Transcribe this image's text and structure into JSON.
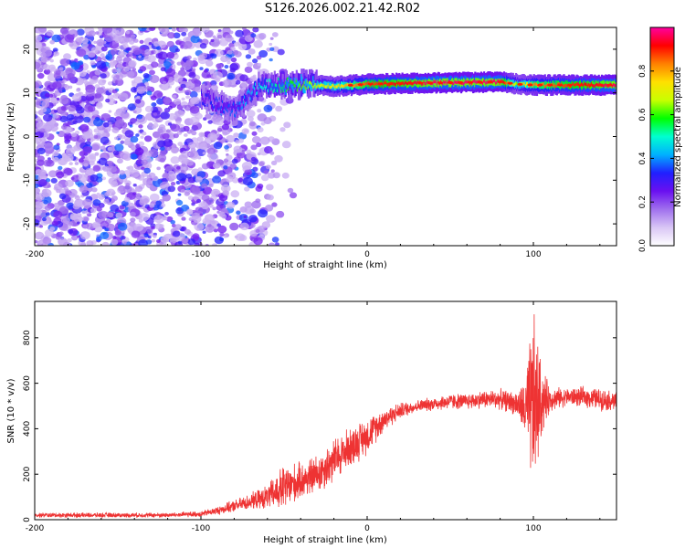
{
  "title": "S126.2026.002.21.42.R02",
  "colors": {
    "snr_line": "#ee3333",
    "colormap": [
      "#ffffff",
      "#d9c6f5",
      "#a070ee",
      "#6a10f0",
      "#2020ff",
      "#00b0ff",
      "#00ffd0",
      "#00ff00",
      "#c8ff00",
      "#ffe000",
      "#ff8000",
      "#ff0000",
      "#ff00a0"
    ]
  },
  "chart_data": [
    {
      "type": "heatmap",
      "xlabel": "Height of straight line (km)",
      "ylabel": "Frequency (Hz)",
      "xlim": [
        -200,
        150
      ],
      "ylim": [
        -25,
        25
      ],
      "xticks": [
        -200,
        -100,
        0,
        100
      ],
      "yticks": [
        -20,
        -10,
        0,
        10,
        20
      ],
      "colorbar": {
        "label": "Normalized spectral amplitude",
        "range": [
          0,
          1
        ],
        "ticks": [
          0,
          0.2,
          0.4,
          0.6,
          0.8
        ],
        "tick_labels": [
          "0.0",
          "0.2",
          "0.4",
          "0.6",
          "0.8"
        ]
      },
      "ridge": {
        "description_points_x": [
          -100,
          -80,
          -65,
          -40,
          -20,
          0,
          40,
          80,
          90,
          100,
          150
        ],
        "frequency": [
          9,
          6,
          11.5,
          12,
          11.5,
          12,
          12.3,
          12.5,
          12,
          11.8,
          11.8
        ],
        "amplitude": [
          0.2,
          0.25,
          0.35,
          0.5,
          0.6,
          0.75,
          0.85,
          0.85,
          0.5,
          0.7,
          0.85
        ]
      }
    },
    {
      "type": "line",
      "xlabel": "Height of straight line (km)",
      "ylabel": "SNR (10 * v/v)",
      "xlim": [
        -200,
        150
      ],
      "ylim": [
        0,
        960
      ],
      "xticks": [
        -200,
        -100,
        0,
        100
      ],
      "yticks": [
        0,
        200,
        400,
        600,
        800
      ],
      "envelope": {
        "x": [
          -200,
          -120,
          -100,
          -90,
          -80,
          -70,
          -60,
          -50,
          -40,
          -30,
          -20,
          -10,
          0,
          10,
          20,
          30,
          40,
          50,
          60,
          70,
          80,
          90,
          95,
          100,
          105,
          110,
          120,
          130,
          140,
          150
        ],
        "mean": [
          20,
          20,
          25,
          40,
          60,
          80,
          100,
          140,
          170,
          200,
          260,
          320,
          370,
          440,
          480,
          500,
          510,
          520,
          520,
          530,
          530,
          510,
          480,
          500,
          520,
          530,
          540,
          540,
          530,
          520
        ],
        "spread": [
          12,
          12,
          15,
          20,
          30,
          40,
          60,
          120,
          90,
          100,
          110,
          100,
          90,
          60,
          40,
          30,
          35,
          40,
          40,
          45,
          50,
          60,
          150,
          480,
          180,
          60,
          45,
          50,
          55,
          50
        ]
      }
    }
  ]
}
